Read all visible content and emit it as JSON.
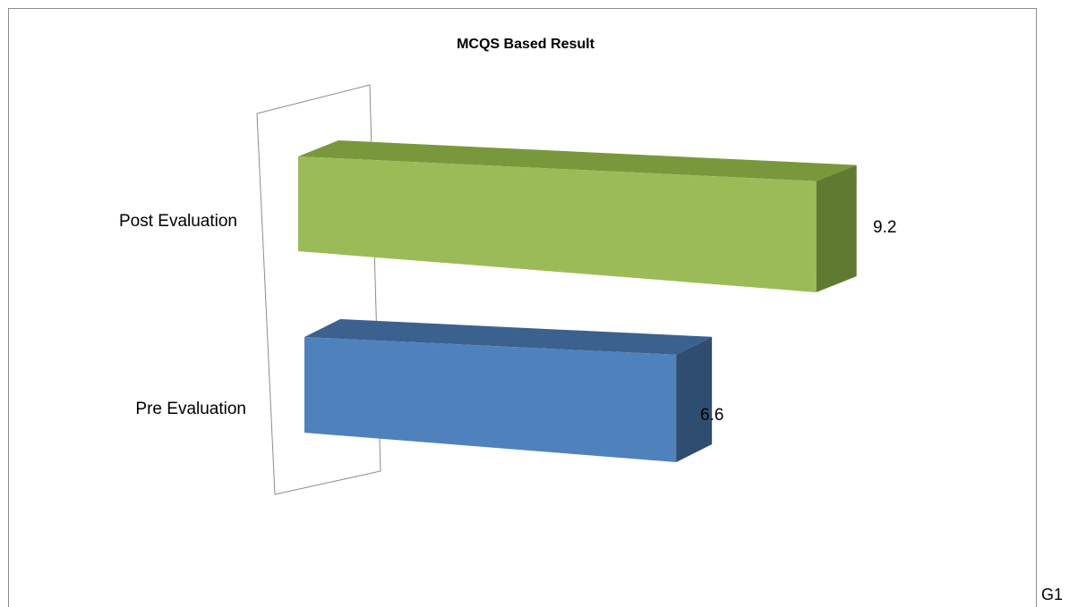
{
  "corner_label": "G1",
  "colors": {
    "post_front": "#9bbb59",
    "post_top": "#79983c",
    "post_side": "#617a31",
    "pre_front": "#4f81bd",
    "pre_top": "#3b618e",
    "pre_side": "#2f4d71",
    "wall": "#8c8c8c"
  },
  "chart_data": {
    "type": "bar",
    "orientation": "horizontal",
    "style": "3d",
    "title": "MCQS Based Result",
    "categories": [
      "Post Evaluation",
      "Pre Evaluation"
    ],
    "values": [
      9.2,
      6.6
    ],
    "value_labels": [
      "9.2",
      "6.6"
    ],
    "xlim": [
      0,
      10
    ],
    "grid": false,
    "legend": "none"
  }
}
